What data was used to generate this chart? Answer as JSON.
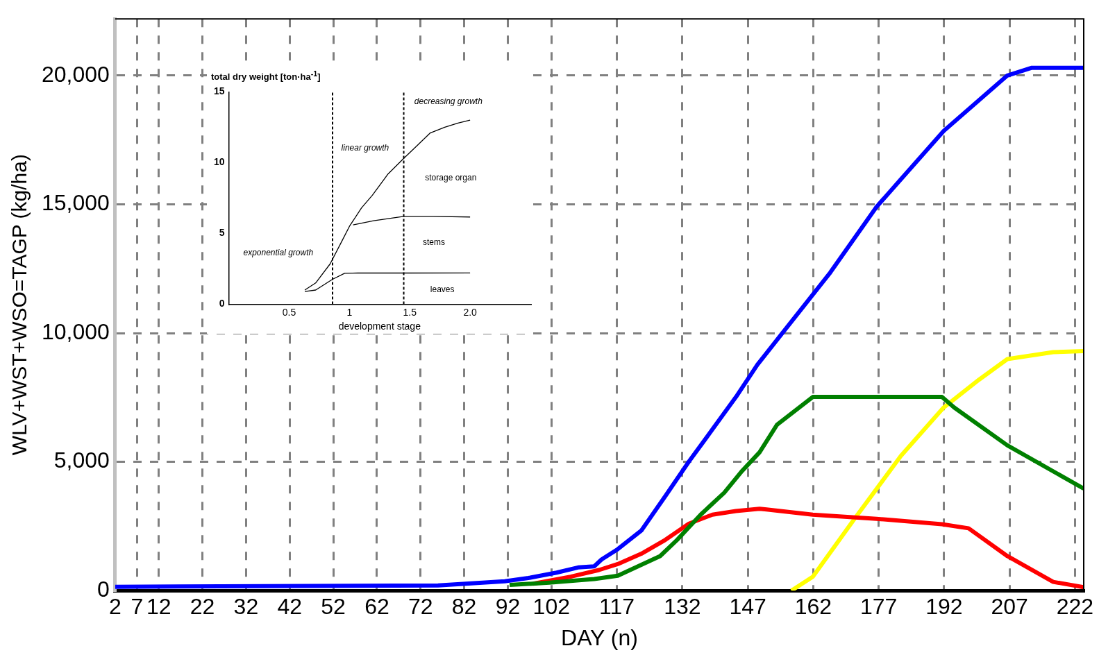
{
  "chart_data": [
    {
      "type": "line",
      "xlabel": "DAY (n)",
      "ylabel": "WLV+WST+WSO=TAGP (kg/ha)",
      "xlim": [
        2,
        224
      ],
      "xticks": [
        2,
        7,
        12,
        22,
        32,
        42,
        52,
        62,
        72,
        82,
        92,
        102,
        117,
        132,
        147,
        162,
        177,
        192,
        207,
        222
      ],
      "ylim": [
        0,
        22200
      ],
      "yticks": [
        0,
        {
          "value": 5000,
          "label": "5,000"
        },
        {
          "value": 10000,
          "label": "10,000"
        },
        {
          "value": 15000,
          "label": "15,000"
        },
        {
          "value": 20000,
          "label": "20,000"
        }
      ],
      "grid": true,
      "series": [
        {
          "color": "#0000ff",
          "x": [
            2,
            76,
            91.3,
            96.7,
            103.2,
            108.1,
            111.8,
            113.5,
            117.2,
            122.6,
            128.1,
            133.5,
            138.9,
            144.3,
            149.2,
            154.6,
            165.9,
            176.5,
            191.9,
            206.5,
            212.1,
            224
          ],
          "values": [
            150,
            200,
            360,
            490,
            700,
            900,
            940,
            1210,
            1610,
            2330,
            3670,
            5010,
            6260,
            7520,
            8770,
            9930,
            12350,
            14900,
            17850,
            20000,
            20300,
            20300
          ]
        },
        {
          "color": "#008000",
          "x": [
            92.4,
            101.5,
            111.8,
            117.2,
            122.6,
            126.9,
            130.8,
            136.2,
            141.6,
            145.6,
            149.7,
            153.7,
            161.9,
            191.5,
            194.3,
            206.5,
            224
          ],
          "values": [
            220,
            310,
            450,
            580,
            1000,
            1340,
            1970,
            2950,
            3800,
            4630,
            5370,
            6440,
            7520,
            7520,
            7110,
            5640,
            3960
          ]
        },
        {
          "color": "#ff0000",
          "x": [
            97.8,
            106.4,
            112.9,
            117.2,
            122.6,
            128.1,
            133.5,
            138.9,
            144.3,
            149.7,
            151.3,
            161.9,
            176.5,
            191.5,
            197.6,
            206.5,
            217,
            224
          ],
          "values": [
            270,
            540,
            800,
            1030,
            1430,
            1970,
            2600,
            2950,
            3090,
            3180,
            3150,
            2950,
            2790,
            2580,
            2420,
            1340,
            340,
            130
          ]
        },
        {
          "color": "#ffff00",
          "x": [
            157,
            161.9,
            171.6,
            182.1,
            191.9,
            200,
            206.5,
            217,
            224
          ],
          "values": [
            0,
            540,
            2820,
            5230,
            7110,
            8190,
            8990,
            9260,
            9300
          ]
        }
      ]
    },
    {
      "type": "line",
      "xlabel": "development stage",
      "ylabel": "total dry weight [ton·ha$^{-1}$]",
      "xlim": [
        0,
        2.5
      ],
      "xticks": [
        0.5,
        1,
        1.5,
        {
          "value": 2,
          "label": "2.0"
        }
      ],
      "ylim": [
        0,
        15
      ],
      "yticks": [
        0,
        5,
        10,
        15
      ],
      "series": [
        {
          "color": "#000000",
          "x": [
            0.63,
            0.72,
            0.84,
            0.94,
            1.0,
            1.1,
            1.19,
            1.32,
            1.45,
            1.56,
            1.67,
            1.79,
            1.9,
            2.0
          ],
          "values": [
            1.0,
            1.5,
            2.85,
            4.5,
            5.5,
            6.8,
            7.7,
            9.2,
            10.3,
            11.2,
            12.1,
            12.5,
            12.8,
            13.0
          ]
        },
        {
          "color": "#000000",
          "x": [
            1.03,
            1.2,
            1.45,
            1.7,
            2.0
          ],
          "values": [
            5.6,
            5.9,
            6.2,
            6.2,
            6.16
          ]
        },
        {
          "color": "#000000",
          "x": [
            0.63,
            0.72,
            0.86,
            0.96,
            1.07,
            1.5,
            2.0
          ],
          "values": [
            0.9,
            1.0,
            1.76,
            2.18,
            2.2,
            2.2,
            2.21
          ]
        }
      ],
      "ref_lines": [
        {
          "axis": "x",
          "value": 0.86,
          "color": "#000000",
          "line_style": "dashed"
        },
        {
          "axis": "x",
          "value": 1.45,
          "color": "#000000",
          "line_style": "dashed"
        }
      ],
      "annotations": [
        "exponential growth",
        "linear growth",
        "decreasing growth",
        "storage organ",
        "stems",
        "leaves"
      ]
    }
  ]
}
